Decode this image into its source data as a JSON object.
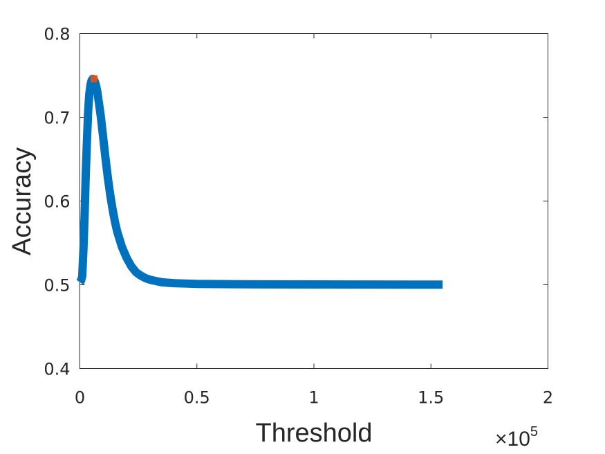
{
  "chart_data": {
    "type": "line",
    "xlabel": "Threshold",
    "ylabel": "Accuracy",
    "x_exponent_label": "×10",
    "x_exponent_power": "5",
    "xlim": [
      0,
      200000
    ],
    "ylim": [
      0.4,
      0.8
    ],
    "xticks": [
      0,
      50000,
      100000,
      150000,
      200000
    ],
    "xtick_labels": [
      "0",
      "0.5",
      "1",
      "1.5",
      "2"
    ],
    "yticks": [
      0.4,
      0.5,
      0.6,
      0.7,
      0.8
    ],
    "ytick_labels": [
      "0.4",
      "0.5",
      "0.6",
      "0.7",
      "0.8"
    ],
    "grid": false,
    "series": [
      {
        "color": "#0072BD",
        "x": [
          0,
          500,
          1000,
          1500,
          2000,
          2500,
          3000,
          3500,
          4000,
          4500,
          5000,
          5500,
          6000,
          6500,
          7000,
          7500,
          8000,
          9000,
          10000,
          11000,
          12000,
          13000,
          14000,
          15000,
          16000,
          18000,
          20000,
          22000,
          24000,
          26000,
          28000,
          30000,
          35000,
          40000,
          45000,
          50000,
          60000,
          70000,
          80000,
          100000,
          120000,
          140000,
          155000
        ],
        "y": [
          0.503,
          0.505,
          0.51,
          0.54,
          0.58,
          0.63,
          0.67,
          0.705,
          0.727,
          0.738,
          0.744,
          0.746,
          0.745,
          0.742,
          0.737,
          0.73,
          0.72,
          0.7,
          0.675,
          0.65,
          0.627,
          0.607,
          0.59,
          0.575,
          0.563,
          0.545,
          0.532,
          0.522,
          0.515,
          0.511,
          0.508,
          0.506,
          0.503,
          0.502,
          0.5015,
          0.501,
          0.5008,
          0.5006,
          0.5005,
          0.5004,
          0.5003,
          0.5002,
          0.5002
        ]
      }
    ],
    "marker": {
      "x": 6000,
      "y": 0.746,
      "color": "#D95319",
      "shape": "square"
    }
  }
}
